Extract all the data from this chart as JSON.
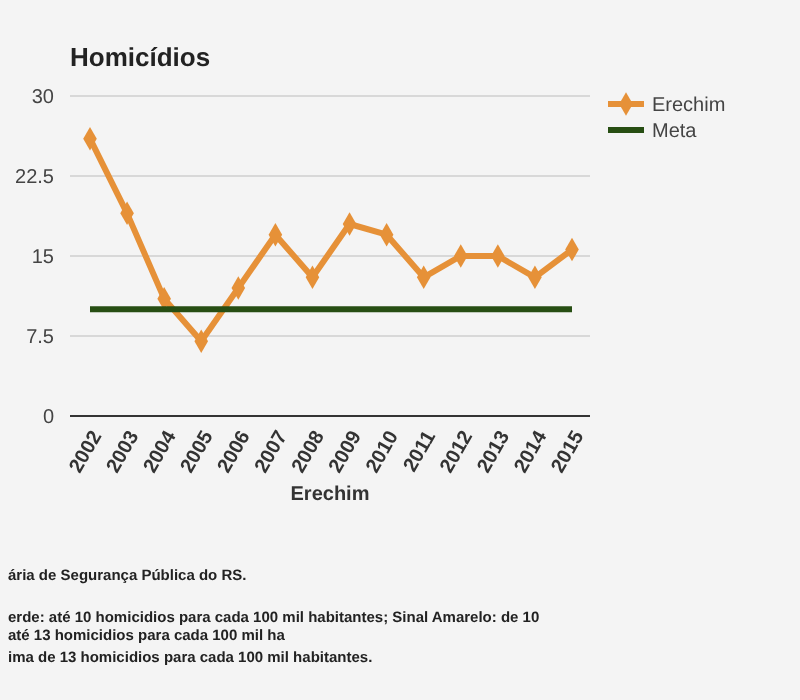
{
  "chart_data": {
    "type": "line",
    "title": "Homicídios",
    "xlabel": "Erechim",
    "categories": [
      "2002",
      "2003",
      "2004",
      "2005",
      "2006",
      "2007",
      "2008",
      "2009",
      "2010",
      "2011",
      "2012",
      "2013",
      "2014",
      "2015"
    ],
    "series": [
      {
        "name": "Erechim",
        "color": "#e69138",
        "marker": "diamond",
        "values": [
          26,
          19,
          11,
          7,
          12,
          17,
          13,
          18,
          17,
          13,
          15,
          15,
          13,
          15.6
        ]
      },
      {
        "name": "Meta",
        "color": "#274e13",
        "marker": "none",
        "values": [
          10,
          10,
          10,
          10,
          10,
          10,
          10,
          10,
          10,
          10,
          10,
          10,
          10,
          10
        ]
      }
    ],
    "ylim": [
      0,
      30
    ],
    "yticks": [
      0,
      7.5,
      15,
      22.5,
      30
    ],
    "grid": "y",
    "legend": "top right",
    "annotations": [
      "ária de Segurança Pública do RS.",
      "erde: até 10 homicidios para cada 100 mil habitantes;  Sinal Amarelo: de 10 até 13 homicidios para cada 100 mil ha",
      "ima de 13 homicidios para cada 100 mil habitantes."
    ]
  }
}
